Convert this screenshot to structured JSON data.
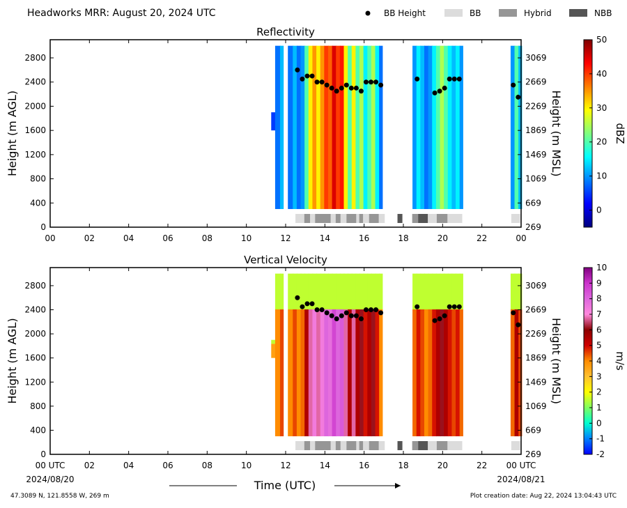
{
  "header": {
    "title": "Headworks MRR:  August 20, 2024 UTC"
  },
  "legend": {
    "items": [
      {
        "label": "BB Height",
        "symbol": "dot",
        "color": "#000000"
      },
      {
        "label": "BB",
        "symbol": "box",
        "color": "#dcdcdc"
      },
      {
        "label": "Hybrid",
        "symbol": "box",
        "color": "#969696"
      },
      {
        "label": "NBB",
        "symbol": "box",
        "color": "#555555"
      }
    ]
  },
  "footer": {
    "location": "47.3089 N, 121.8558 W, 269 m",
    "created": "Plot creation date: Aug 22, 2024 13:04:43 UTC",
    "date_start": "2024/08/20",
    "date_end": "2024/08/21",
    "xlabel": "Time (UTC)"
  },
  "chart_data": [
    {
      "type": "heatmap",
      "title": "Reflectivity",
      "ylabel": "Height (m AGL)",
      "ylabel_right": "Height (m MSL)",
      "colorbar_label": "dBZ",
      "colorbar_range": [
        -5,
        50
      ],
      "colorbar_ticks": [
        "0",
        "10",
        "20",
        "30",
        "40",
        "50"
      ],
      "colorbar_tick_values": [
        0,
        10,
        20,
        30,
        40,
        50
      ],
      "colorbar_colors": [
        "#00007f",
        "#0000ff",
        "#007fff",
        "#00ffff",
        "#7fff7f",
        "#ffff00",
        "#ff7f00",
        "#ff0000",
        "#7f0000"
      ],
      "xlim": [
        0,
        24
      ],
      "ylim": [
        0,
        3100
      ],
      "xticks": [
        "00",
        "02",
        "04",
        "06",
        "08",
        "10",
        "12",
        "14",
        "16",
        "18",
        "20",
        "22",
        "00"
      ],
      "xtick_values": [
        0,
        2,
        4,
        6,
        8,
        10,
        12,
        14,
        16,
        18,
        20,
        22,
        24
      ],
      "yticks": [
        "0",
        "400",
        "800",
        "1200",
        "1600",
        "2000",
        "2400",
        "2800"
      ],
      "ytick_values": [
        0,
        400,
        800,
        1200,
        1600,
        2000,
        2400,
        2800
      ],
      "yticks_right": [
        "269",
        "669",
        "1069",
        "1469",
        "1869",
        "2269",
        "2669",
        "3069"
      ],
      "profiles": [
        {
          "t": 11.3,
          "dbz": 5,
          "bottom": 1600,
          "top": 1900
        },
        {
          "t": 11.5,
          "dbz": 8,
          "bottom": 300,
          "top": 3000
        },
        {
          "t": 11.75,
          "dbz": 12,
          "bottom": 300,
          "top": 3000
        },
        {
          "t": 12.15,
          "dbz": 8,
          "bottom": 300,
          "top": 3000
        },
        {
          "t": 12.4,
          "dbz": 12,
          "bottom": 300,
          "top": 3000
        },
        {
          "t": 12.6,
          "dbz": 8,
          "bottom": 300,
          "top": 3000
        },
        {
          "t": 12.8,
          "dbz": 10,
          "bottom": 300,
          "top": 3000
        },
        {
          "t": 13.0,
          "dbz": 20,
          "bottom": 300,
          "top": 3000
        },
        {
          "t": 13.2,
          "dbz": 30,
          "bottom": 300,
          "top": 3000
        },
        {
          "t": 13.4,
          "dbz": 35,
          "bottom": 300,
          "top": 3000
        },
        {
          "t": 13.6,
          "dbz": 30,
          "bottom": 300,
          "top": 3000
        },
        {
          "t": 13.8,
          "dbz": 35,
          "bottom": 300,
          "top": 3000
        },
        {
          "t": 14.0,
          "dbz": 40,
          "bottom": 300,
          "top": 3000
        },
        {
          "t": 14.2,
          "dbz": 38,
          "bottom": 300,
          "top": 3000
        },
        {
          "t": 14.4,
          "dbz": 45,
          "bottom": 300,
          "top": 3000
        },
        {
          "t": 14.6,
          "dbz": 40,
          "bottom": 300,
          "top": 3000
        },
        {
          "t": 14.8,
          "dbz": 42,
          "bottom": 300,
          "top": 3000
        },
        {
          "t": 15.0,
          "dbz": 30,
          "bottom": 300,
          "top": 3000
        },
        {
          "t": 15.2,
          "dbz": 20,
          "bottom": 300,
          "top": 3000
        },
        {
          "t": 15.4,
          "dbz": 30,
          "bottom": 300,
          "top": 3000
        },
        {
          "t": 15.6,
          "dbz": 20,
          "bottom": 300,
          "top": 3000
        },
        {
          "t": 15.8,
          "dbz": 25,
          "bottom": 300,
          "top": 3000
        },
        {
          "t": 16.0,
          "dbz": 15,
          "bottom": 300,
          "top": 3000
        },
        {
          "t": 16.2,
          "dbz": 20,
          "bottom": 300,
          "top": 3000
        },
        {
          "t": 16.4,
          "dbz": 25,
          "bottom": 300,
          "top": 3000
        },
        {
          "t": 16.6,
          "dbz": 15,
          "bottom": 300,
          "top": 3000
        },
        {
          "t": 16.8,
          "dbz": 8,
          "bottom": 300,
          "top": 3000
        },
        {
          "t": 18.5,
          "dbz": 10,
          "bottom": 300,
          "top": 3000
        },
        {
          "t": 18.7,
          "dbz": 15,
          "bottom": 300,
          "top": 3000
        },
        {
          "t": 18.9,
          "dbz": 12,
          "bottom": 300,
          "top": 3000
        },
        {
          "t": 19.1,
          "dbz": 8,
          "bottom": 300,
          "top": 3000
        },
        {
          "t": 19.3,
          "dbz": 10,
          "bottom": 300,
          "top": 3000
        },
        {
          "t": 19.5,
          "dbz": 15,
          "bottom": 300,
          "top": 3000
        },
        {
          "t": 19.7,
          "dbz": 20,
          "bottom": 300,
          "top": 3000
        },
        {
          "t": 19.9,
          "dbz": 25,
          "bottom": 300,
          "top": 3000
        },
        {
          "t": 20.1,
          "dbz": 20,
          "bottom": 300,
          "top": 3000
        },
        {
          "t": 20.3,
          "dbz": 15,
          "bottom": 300,
          "top": 3000
        },
        {
          "t": 20.5,
          "dbz": 12,
          "bottom": 300,
          "top": 3000
        },
        {
          "t": 20.7,
          "dbz": 15,
          "bottom": 300,
          "top": 3000
        },
        {
          "t": 20.9,
          "dbz": 10,
          "bottom": 300,
          "top": 3000
        },
        {
          "t": 23.5,
          "dbz": 10,
          "bottom": 300,
          "top": 3000
        },
        {
          "t": 23.7,
          "dbz": 20,
          "bottom": 300,
          "top": 3000
        },
        {
          "t": 23.9,
          "dbz": 12,
          "bottom": 300,
          "top": 3000
        }
      ],
      "bb_height": {
        "t": [
          12.6,
          12.85,
          13.1,
          13.35,
          13.6,
          13.85,
          14.1,
          14.35,
          14.6,
          14.85,
          15.1,
          15.35,
          15.6,
          15.85,
          16.1,
          16.35,
          16.6,
          16.85,
          18.7,
          19.6,
          19.85,
          20.1,
          20.35,
          20.6,
          20.85,
          23.6,
          23.85
        ],
        "height": [
          2600,
          2450,
          2500,
          2500,
          2400,
          2400,
          2350,
          2300,
          2250,
          2300,
          2350,
          2300,
          2300,
          2250,
          2400,
          2400,
          2400,
          2350,
          2450,
          2220,
          2250,
          2300,
          2450,
          2450,
          2450,
          2350,
          2150
        ]
      },
      "bb_type": [
        {
          "start": 12.5,
          "end": 12.95,
          "type": "BB"
        },
        {
          "start": 12.95,
          "end": 13.25,
          "type": "Hybrid"
        },
        {
          "start": 13.25,
          "end": 13.5,
          "type": "BB"
        },
        {
          "start": 13.5,
          "end": 14.3,
          "type": "Hybrid"
        },
        {
          "start": 14.3,
          "end": 14.55,
          "type": "BB"
        },
        {
          "start": 14.55,
          "end": 14.8,
          "type": "Hybrid"
        },
        {
          "start": 14.8,
          "end": 15.1,
          "type": "BB"
        },
        {
          "start": 15.1,
          "end": 15.6,
          "type": "Hybrid"
        },
        {
          "start": 15.6,
          "end": 15.75,
          "type": "BB"
        },
        {
          "start": 15.75,
          "end": 15.95,
          "type": "Hybrid"
        },
        {
          "start": 15.95,
          "end": 16.25,
          "type": "BB"
        },
        {
          "start": 16.25,
          "end": 16.75,
          "type": "Hybrid"
        },
        {
          "start": 16.75,
          "end": 17.05,
          "type": "BB"
        },
        {
          "start": 17.7,
          "end": 17.95,
          "type": "NBB"
        },
        {
          "start": 18.45,
          "end": 18.75,
          "type": "Hybrid"
        },
        {
          "start": 18.75,
          "end": 19.25,
          "type": "NBB"
        },
        {
          "start": 19.25,
          "end": 19.7,
          "type": "BB"
        },
        {
          "start": 19.7,
          "end": 20.25,
          "type": "Hybrid"
        },
        {
          "start": 20.25,
          "end": 21.0,
          "type": "BB"
        },
        {
          "start": 23.5,
          "end": 23.95,
          "type": "BB"
        }
      ]
    },
    {
      "type": "heatmap",
      "title": "Vertical Velocity",
      "ylabel": "Height (m AGL)",
      "ylabel_right": "Height (m MSL)",
      "colorbar_label": "m/s",
      "colorbar_range": [
        -2,
        10
      ],
      "colorbar_ticks": [
        "-2",
        "-1",
        "0",
        "1",
        "2",
        "3",
        "4",
        "5",
        "6",
        "7",
        "8",
        "9",
        "10"
      ],
      "colorbar_tick_values": [
        -2,
        -1,
        0,
        1,
        2,
        3,
        4,
        5,
        6,
        7,
        8,
        9,
        10
      ],
      "colorbar_colors": [
        "#0000ff",
        "#0080ff",
        "#00ffd0",
        "#7fff5f",
        "#ffff00",
        "#ffc030",
        "#ff8c00",
        "#d00000",
        "#8b0000",
        "#ff88dd",
        "#dd66dd",
        "#cc33cc",
        "#800080"
      ],
      "xlim": [
        0,
        24
      ],
      "ylim": [
        0,
        3100
      ],
      "xticks": [
        "00 UTC",
        "02",
        "04",
        "06",
        "08",
        "10",
        "12",
        "14",
        "16",
        "18",
        "20",
        "22",
        "00 UTC"
      ],
      "xtick_values": [
        0,
        2,
        4,
        6,
        8,
        10,
        12,
        14,
        16,
        18,
        20,
        22,
        24
      ],
      "yticks": [
        "0",
        "400",
        "800",
        "1200",
        "1600",
        "2000",
        "2400",
        "2800"
      ],
      "ytick_values": [
        0,
        400,
        800,
        1200,
        1600,
        2000,
        2400,
        2800
      ],
      "yticks_right": [
        "269",
        "669",
        "1069",
        "1469",
        "1869",
        "2269",
        "2669",
        "3069"
      ],
      "bb_height_ref": 0,
      "bb_type_ref": 0
    }
  ]
}
